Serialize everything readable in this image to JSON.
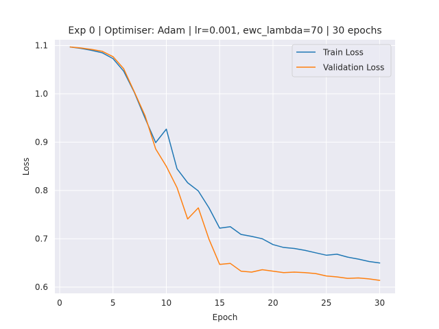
{
  "chart_data": {
    "type": "line",
    "title": "Exp 0 | Optimiser: Adam | lr=0.001, ewc_lambda=70 | 30 epochs",
    "xlabel": "Epoch",
    "ylabel": "Loss",
    "xlim": [
      -0.45,
      31.45
    ],
    "ylim": [
      0.587,
      1.112
    ],
    "xticks": [
      0,
      5,
      10,
      15,
      20,
      25,
      30
    ],
    "yticks": [
      0.6,
      0.7,
      0.8,
      0.9,
      1.0,
      1.1
    ],
    "ytick_labels": [
      "0.6",
      "0.7",
      "0.8",
      "0.9",
      "1.0",
      "1.1"
    ],
    "grid": true,
    "legend": "top-right",
    "x": [
      1,
      2,
      3,
      4,
      5,
      6,
      7,
      8,
      9,
      10,
      11,
      12,
      13,
      14,
      15,
      16,
      17,
      18,
      19,
      20,
      21,
      22,
      23,
      24,
      25,
      26,
      27,
      28,
      29,
      30
    ],
    "series": [
      {
        "name": "Train Loss",
        "color": "#1f77b4",
        "values": [
          1.097,
          1.094,
          1.09,
          1.085,
          1.073,
          1.047,
          1.003,
          0.95,
          0.899,
          0.927,
          0.845,
          0.816,
          0.799,
          0.764,
          0.722,
          0.725,
          0.709,
          0.705,
          0.7,
          0.688,
          0.682,
          0.68,
          0.676,
          0.671,
          0.666,
          0.668,
          0.662,
          0.658,
          0.653,
          0.65
        ]
      },
      {
        "name": "Validation Loss",
        "color": "#ff7f0e",
        "values": [
          1.097,
          1.095,
          1.092,
          1.088,
          1.077,
          1.052,
          1.004,
          0.955,
          0.886,
          0.85,
          0.806,
          0.741,
          0.764,
          0.699,
          0.647,
          0.649,
          0.633,
          0.631,
          0.636,
          0.633,
          0.63,
          0.631,
          0.63,
          0.628,
          0.623,
          0.621,
          0.618,
          0.619,
          0.617,
          0.614
        ]
      }
    ]
  }
}
